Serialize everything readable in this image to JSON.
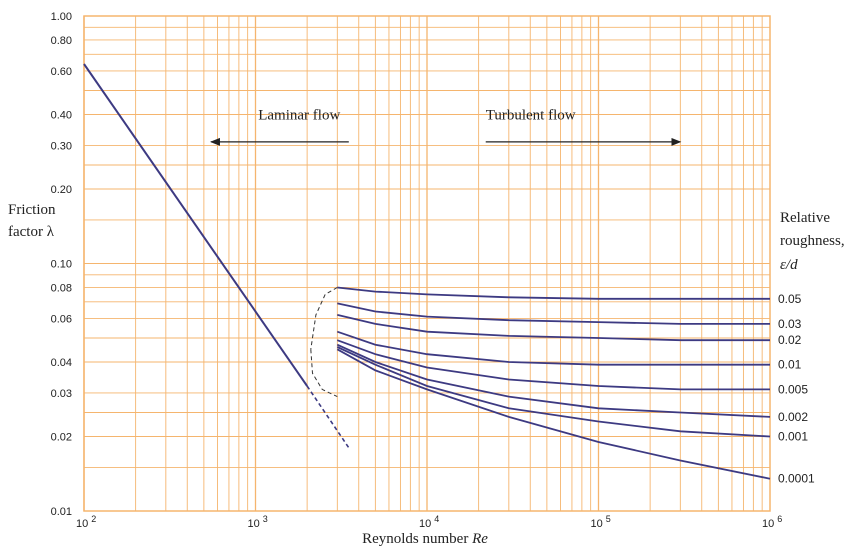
{
  "chart_data": {
    "type": "line",
    "xscale": "log",
    "yscale": "log",
    "xlim": [
      100,
      1000000
    ],
    "ylim": [
      0.01,
      1.0
    ],
    "grid": true,
    "colors": {
      "grid": "#f5b56e",
      "curve": "#3d3a82",
      "text": "#222222"
    },
    "x_ticks": [
      {
        "value": 100,
        "base": "10",
        "exp": "2"
      },
      {
        "value": 1000,
        "base": "10",
        "exp": "3"
      },
      {
        "value": 10000,
        "base": "10",
        "exp": "4"
      },
      {
        "value": 100000,
        "base": "10",
        "exp": "5"
      },
      {
        "value": 1000000,
        "base": "10",
        "exp": "6"
      }
    ],
    "y_ticks": [
      {
        "value": 1.0,
        "label": "1.00"
      },
      {
        "value": 0.8,
        "label": "0.80"
      },
      {
        "value": 0.6,
        "label": "0.60"
      },
      {
        "value": 0.4,
        "label": "0.40"
      },
      {
        "value": 0.3,
        "label": "0.30"
      },
      {
        "value": 0.2,
        "label": "0.20"
      },
      {
        "value": 0.1,
        "label": "0.10"
      },
      {
        "value": 0.08,
        "label": "0.08"
      },
      {
        "value": 0.06,
        "label": "0.06"
      },
      {
        "value": 0.04,
        "label": "0.04"
      },
      {
        "value": 0.03,
        "label": "0.03"
      },
      {
        "value": 0.02,
        "label": "0.02"
      },
      {
        "value": 0.01,
        "label": "0.01"
      }
    ],
    "xlabel": "Reynolds number ",
    "xlabel_symbol": "Re",
    "ylabel_line1": "Friction",
    "ylabel_line2": "factor λ",
    "right_label_line1": "Relative",
    "right_label_line2": "roughness,",
    "right_label_line3": "ε/d",
    "annotations": {
      "laminar": {
        "text": "Laminar flow",
        "x": 1800,
        "y": 0.4,
        "arrow_from": 3500,
        "arrow_to": 550,
        "arrow_y": 0.31
      },
      "turbulent": {
        "text": "Turbulent flow",
        "x": 22000,
        "y": 0.4,
        "arrow_from": 22000,
        "arrow_to": 300000,
        "arrow_y": 0.31
      }
    },
    "laminar_line": {
      "x": [
        100,
        2000
      ],
      "y": [
        0.64,
        0.032
      ]
    },
    "laminar_extension": {
      "x": [
        2000,
        3500
      ],
      "y": [
        0.032,
        0.018
      ]
    },
    "transition_curves": [
      {
        "x": [
          3000,
          2550,
          2250,
          2100
        ],
        "y": [
          0.08,
          0.075,
          0.062,
          0.045
        ]
      },
      {
        "x": [
          2100,
          2150,
          2450,
          3000
        ],
        "y": [
          0.045,
          0.036,
          0.031,
          0.029
        ]
      }
    ],
    "series": [
      {
        "label": "0.05",
        "x": [
          3000,
          5000,
          10000,
          30000,
          100000,
          300000,
          1000000
        ],
        "y": [
          0.08,
          0.077,
          0.075,
          0.073,
          0.072,
          0.072,
          0.072
        ]
      },
      {
        "label": "0.03",
        "x": [
          3000,
          5000,
          10000,
          30000,
          100000,
          300000,
          1000000
        ],
        "y": [
          0.069,
          0.064,
          0.061,
          0.059,
          0.058,
          0.057,
          0.057
        ]
      },
      {
        "label": "0.02",
        "x": [
          3000,
          5000,
          10000,
          30000,
          100000,
          300000,
          1000000
        ],
        "y": [
          0.062,
          0.057,
          0.053,
          0.051,
          0.05,
          0.049,
          0.049
        ]
      },
      {
        "label": "0.01",
        "x": [
          3000,
          5000,
          10000,
          30000,
          100000,
          300000,
          1000000
        ],
        "y": [
          0.053,
          0.047,
          0.043,
          0.04,
          0.039,
          0.039,
          0.039
        ]
      },
      {
        "label": "0.005",
        "x": [
          3000,
          5000,
          10000,
          30000,
          100000,
          300000,
          1000000
        ],
        "y": [
          0.049,
          0.043,
          0.038,
          0.034,
          0.032,
          0.031,
          0.031
        ]
      },
      {
        "label": "0.002",
        "x": [
          3000,
          5000,
          10000,
          30000,
          100000,
          300000,
          1000000
        ],
        "y": [
          0.047,
          0.04,
          0.034,
          0.029,
          0.026,
          0.025,
          0.024
        ]
      },
      {
        "label": "0.001",
        "x": [
          3000,
          5000,
          10000,
          30000,
          100000,
          300000,
          1000000
        ],
        "y": [
          0.046,
          0.039,
          0.032,
          0.026,
          0.023,
          0.021,
          0.02
        ]
      },
      {
        "label": "0.0001",
        "x": [
          3000,
          5000,
          10000,
          30000,
          100000,
          300000,
          1000000
        ],
        "y": [
          0.045,
          0.037,
          0.031,
          0.024,
          0.019,
          0.016,
          0.0135
        ]
      }
    ]
  }
}
